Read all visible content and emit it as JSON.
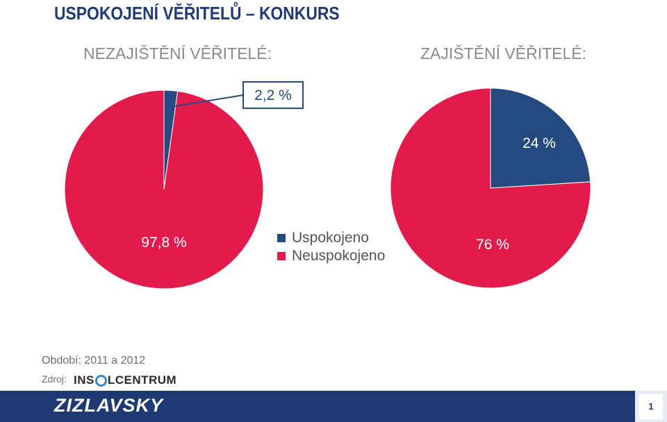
{
  "page": {
    "title": "USPOKOJENÍ VĚŘITELŮ – KONKURS",
    "period": "Období: 2011 a 2012",
    "source_label": "Zdroj:",
    "logo_prefix": "INS",
    "logo_suffix": "LCENTRUM",
    "brand": "ZIZLAVSKY",
    "page_number": "1"
  },
  "legend": [
    {
      "label": "Uspokojeno",
      "color": "#244a7f"
    },
    {
      "label": "Neuspokojeno",
      "color": "#e31b4c"
    }
  ],
  "chart_data": [
    {
      "type": "pie",
      "title": "NEZAJIŠTĚNÍ VĚŘITELÉ:",
      "categories": [
        "Uspokojeno",
        "Neuspokojeno"
      ],
      "values": [
        2.2,
        97.8
      ],
      "labels": [
        "2,2 %",
        "97,8 %"
      ],
      "colors": [
        "#244a7f",
        "#e31b4c"
      ],
      "legend_position": "right"
    },
    {
      "type": "pie",
      "title": "ZAJIŠTĚNÍ VĚŘITELÉ:",
      "categories": [
        "Uspokojeno",
        "Neuspokojeno"
      ],
      "values": [
        24,
        76
      ],
      "labels": [
        "24 %",
        "76 %"
      ],
      "colors": [
        "#244a7f",
        "#e31b4c"
      ],
      "legend_position": "left"
    }
  ]
}
